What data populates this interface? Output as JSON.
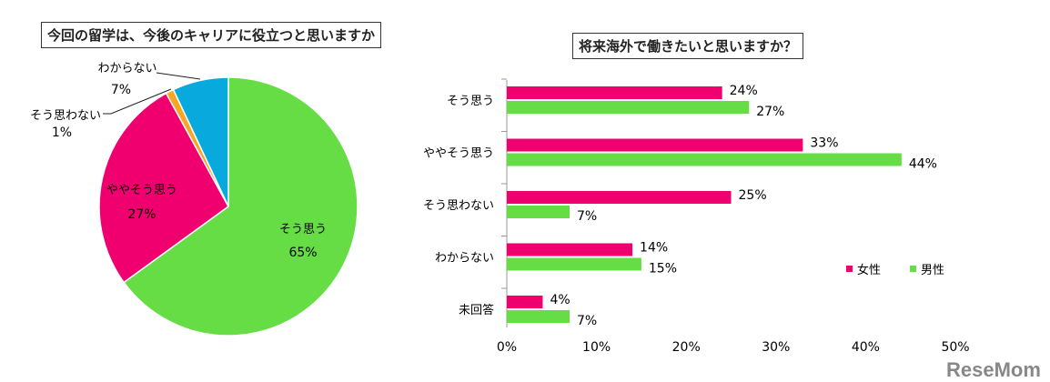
{
  "chart_data": [
    {
      "type": "pie",
      "title": "今回の留学は、今後のキャリアに役立つと思いますか",
      "slices": [
        {
          "label": "そう思う",
          "value": 65,
          "display": "65%",
          "color": "#66dd44"
        },
        {
          "label": "ややそう思う",
          "value": 27,
          "display": "27%",
          "color": "#f0006e"
        },
        {
          "label": "そう思わない",
          "value": 1,
          "display": "1%",
          "color": "#f5a623"
        },
        {
          "label": "わからない",
          "value": 7,
          "display": "7%",
          "color": "#08aadd"
        }
      ]
    },
    {
      "type": "bar",
      "orientation": "horizontal",
      "title": "将来海外で働きたいと思いますか？",
      "categories": [
        "そう思う",
        "ややそう思う",
        "そう思わない",
        "わからない",
        "未回答"
      ],
      "series": [
        {
          "name": "女性",
          "color": "#f0006e",
          "values": [
            24,
            33,
            25,
            14,
            4
          ]
        },
        {
          "name": "男性",
          "color": "#66dd44",
          "values": [
            27,
            44,
            7,
            15,
            7
          ]
        }
      ],
      "xlim": [
        0,
        50
      ],
      "xticks": [
        "0%",
        "10%",
        "20%",
        "30%",
        "40%",
        "50%"
      ],
      "legend": "bottom-right"
    }
  ],
  "watermark": "ReseMom"
}
